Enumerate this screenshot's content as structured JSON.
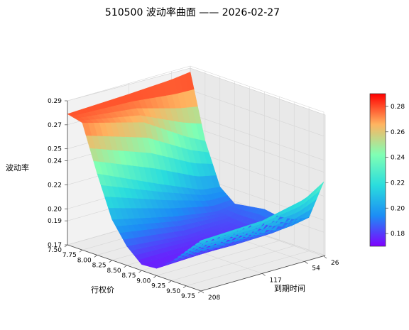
{
  "chart_data": {
    "type": "surface3d",
    "title": "510500 波动率曲面 —— 2026-02-27",
    "xlabel": "行权价",
    "ylabel": "到期时间",
    "zlabel": "波动率",
    "x_ticks": [
      "7.50",
      "7.75",
      "8.00",
      "8.25",
      "8.50",
      "8.75",
      "9.00",
      "9.25",
      "9.50",
      "9.75"
    ],
    "y_ticks": [
      "26",
      "54",
      "117",
      "208"
    ],
    "z_ticks": [
      "0.17",
      "0.19",
      "0.20",
      "0.22",
      "0.24",
      "0.25",
      "0.27",
      "0.29"
    ],
    "colorbar_ticks": [
      "0.18",
      "0.20",
      "0.22",
      "0.24",
      "0.26",
      "0.28"
    ],
    "colorbar_range": [
      0.17,
      0.29
    ],
    "colormap": "rainbow",
    "xlim": [
      7.5,
      9.75
    ],
    "ylim": [
      26,
      208
    ],
    "zlim": [
      0.17,
      0.29
    ],
    "strikes": [
      7.5,
      7.75,
      8.0,
      8.25,
      8.5,
      8.75,
      9.0,
      9.25,
      9.5,
      9.75
    ],
    "expiries": [
      26,
      54,
      117,
      208
    ],
    "volatility": [
      [
        0.285,
        0.232,
        0.198,
        0.188,
        0.19,
        0.192,
        0.19,
        0.192,
        0.198,
        0.232
      ],
      [
        0.283,
        0.24,
        0.2,
        0.186,
        0.183,
        0.182,
        0.182,
        0.186,
        0.195,
        0.222
      ],
      [
        0.281,
        0.262,
        0.215,
        0.192,
        0.181,
        0.177,
        0.178,
        0.185,
        0.196,
        0.214
      ],
      [
        0.279,
        0.276,
        0.238,
        0.204,
        0.186,
        0.175,
        0.176,
        0.186,
        0.199,
        0.212
      ]
    ]
  }
}
